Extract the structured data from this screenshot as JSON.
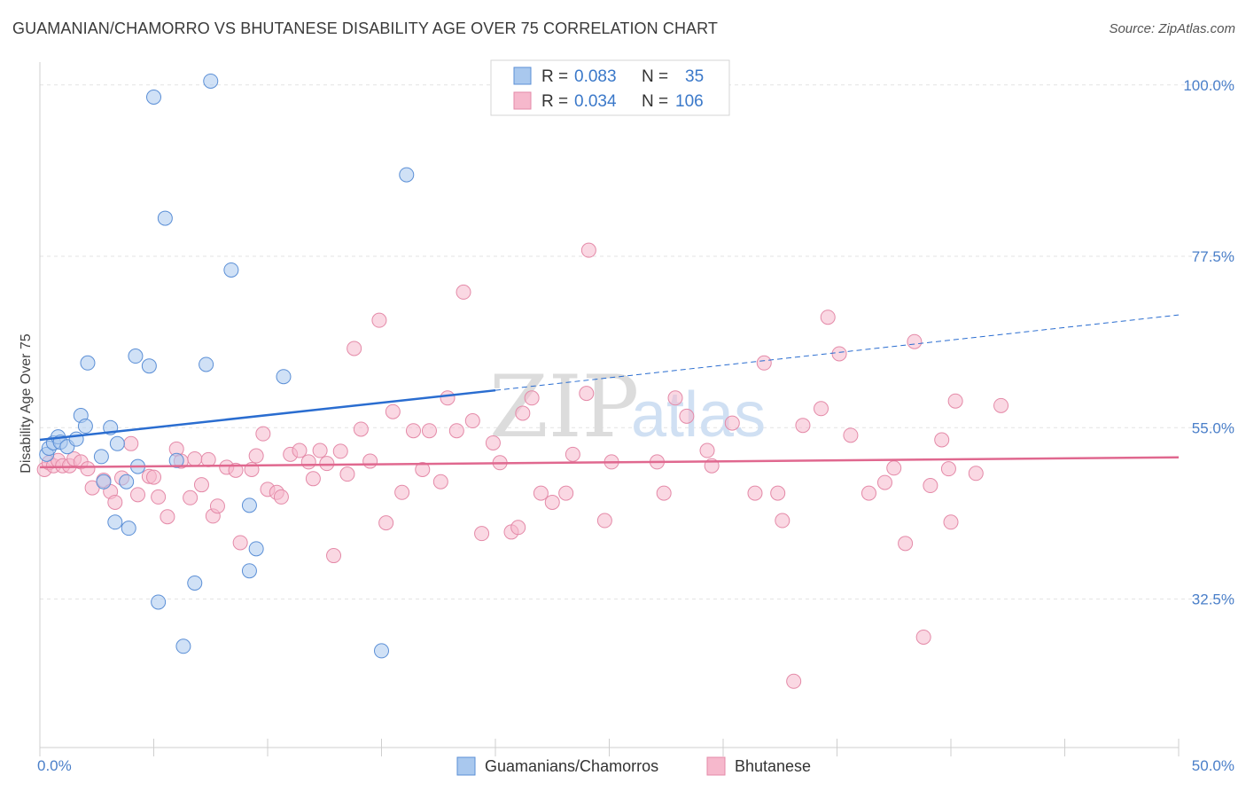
{
  "title": "GUAMANIAN/CHAMORRO VS BHUTANESE DISABILITY AGE OVER 75 CORRELATION CHART",
  "source": "Source: ZipAtlas.com",
  "watermark": {
    "zip": "ZIP",
    "atlas": "atlas"
  },
  "colors": {
    "blue_fill": "#a9c8ee",
    "blue_stroke": "#5b8fd6",
    "blue_line": "#2a6dd0",
    "pink_fill": "#f6b8cc",
    "pink_stroke": "#e48aa8",
    "pink_line": "#e0688f",
    "grid": "#e3e3e3",
    "tick_label": "#4a7fc9"
  },
  "legend": {
    "rows": [
      {
        "r_label": "R =",
        "r_value": "0.083",
        "n_label": "N =",
        "n_value": "35"
      },
      {
        "r_label": "R =",
        "r_value": "0.034",
        "n_label": "N =",
        "n_value": "106"
      }
    ]
  },
  "chart_data": {
    "type": "scatter",
    "title": "GUAMANIAN/CHAMORRO VS BHUTANESE DISABILITY AGE OVER 75 CORRELATION CHART",
    "xlabel": "",
    "ylabel": "Disability Age Over 75",
    "xlim": [
      0,
      50
    ],
    "ylim": [
      13,
      103
    ],
    "x_tick_labels": [
      "0.0%",
      "50.0%"
    ],
    "y_ticks": [
      32.5,
      55.0,
      77.5,
      100.0
    ],
    "y_tick_labels": [
      "32.5%",
      "55.0%",
      "77.5%",
      "100.0%"
    ],
    "grid": "horizontal dashed",
    "legend_position": "top-center",
    "series": [
      {
        "name": "Guamanians/Chamorros",
        "color": "#a9c8ee",
        "trend": {
          "x": [
            0,
            20,
            50
          ],
          "y": [
            53.4,
            59.9,
            69.8
          ],
          "solid_until": 20
        },
        "points": [
          [
            0.3,
            51.5
          ],
          [
            0.4,
            52.3
          ],
          [
            0.6,
            53.0
          ],
          [
            0.8,
            53.8
          ],
          [
            0.9,
            53.1
          ],
          [
            1.2,
            52.5
          ],
          [
            1.6,
            53.5
          ],
          [
            1.8,
            56.6
          ],
          [
            2.0,
            55.2
          ],
          [
            2.1,
            63.5
          ],
          [
            2.7,
            51.2
          ],
          [
            2.8,
            47.9
          ],
          [
            3.1,
            55.0
          ],
          [
            3.3,
            42.6
          ],
          [
            3.4,
            52.9
          ],
          [
            3.8,
            47.9
          ],
          [
            3.9,
            41.8
          ],
          [
            4.2,
            64.4
          ],
          [
            4.3,
            49.9
          ],
          [
            4.8,
            63.1
          ],
          [
            5.0,
            98.4
          ],
          [
            5.2,
            32.1
          ],
          [
            5.5,
            82.5
          ],
          [
            6.0,
            50.7
          ],
          [
            6.3,
            26.3
          ],
          [
            6.8,
            34.6
          ],
          [
            7.3,
            63.3
          ],
          [
            7.5,
            100.5
          ],
          [
            8.4,
            75.7
          ],
          [
            9.2,
            44.8
          ],
          [
            9.2,
            36.2
          ],
          [
            9.5,
            39.1
          ],
          [
            10.7,
            61.7
          ],
          [
            15.0,
            25.7
          ],
          [
            16.1,
            88.2
          ]
        ]
      },
      {
        "name": "Bhutanese",
        "color": "#f6b8cc",
        "trend": {
          "x": [
            0,
            50
          ],
          "y": [
            49.8,
            51.1
          ]
        },
        "points": [
          [
            0.2,
            49.5
          ],
          [
            0.4,
            50.4
          ],
          [
            0.6,
            50.0
          ],
          [
            0.8,
            50.7
          ],
          [
            1.0,
            50.0
          ],
          [
            1.3,
            50.0
          ],
          [
            1.5,
            50.9
          ],
          [
            1.8,
            50.5
          ],
          [
            2.1,
            49.6
          ],
          [
            2.3,
            47.1
          ],
          [
            2.8,
            48.1
          ],
          [
            3.1,
            46.6
          ],
          [
            3.3,
            45.2
          ],
          [
            3.6,
            48.4
          ],
          [
            4.0,
            52.9
          ],
          [
            4.3,
            46.2
          ],
          [
            4.8,
            48.6
          ],
          [
            5.0,
            48.5
          ],
          [
            5.2,
            45.9
          ],
          [
            5.6,
            43.3
          ],
          [
            6.0,
            52.2
          ],
          [
            6.2,
            50.6
          ],
          [
            6.6,
            45.8
          ],
          [
            6.8,
            50.9
          ],
          [
            7.1,
            47.5
          ],
          [
            7.4,
            50.8
          ],
          [
            7.6,
            43.4
          ],
          [
            7.8,
            44.7
          ],
          [
            8.2,
            49.8
          ],
          [
            8.6,
            49.4
          ],
          [
            8.8,
            39.9
          ],
          [
            9.3,
            49.5
          ],
          [
            9.5,
            51.3
          ],
          [
            9.8,
            54.2
          ],
          [
            10.0,
            46.9
          ],
          [
            10.4,
            46.5
          ],
          [
            10.6,
            45.9
          ],
          [
            11.0,
            51.5
          ],
          [
            11.4,
            52.0
          ],
          [
            11.8,
            50.5
          ],
          [
            12.0,
            48.3
          ],
          [
            12.3,
            52.0
          ],
          [
            12.6,
            50.3
          ],
          [
            12.9,
            38.2
          ],
          [
            13.2,
            51.9
          ],
          [
            13.5,
            48.9
          ],
          [
            13.8,
            65.4
          ],
          [
            14.1,
            54.8
          ],
          [
            14.5,
            50.6
          ],
          [
            14.9,
            69.1
          ],
          [
            15.2,
            42.5
          ],
          [
            15.5,
            57.1
          ],
          [
            15.9,
            46.5
          ],
          [
            16.4,
            54.6
          ],
          [
            16.8,
            49.5
          ],
          [
            17.1,
            54.6
          ],
          [
            17.6,
            47.9
          ],
          [
            17.9,
            58.9
          ],
          [
            18.3,
            54.6
          ],
          [
            18.6,
            72.8
          ],
          [
            19.0,
            55.9
          ],
          [
            19.4,
            41.1
          ],
          [
            19.9,
            53.0
          ],
          [
            20.2,
            50.4
          ],
          [
            20.7,
            41.3
          ],
          [
            21.0,
            41.9
          ],
          [
            21.2,
            56.9
          ],
          [
            21.6,
            58.9
          ],
          [
            22.0,
            46.4
          ],
          [
            22.5,
            45.2
          ],
          [
            23.1,
            46.4
          ],
          [
            23.4,
            51.5
          ],
          [
            24.0,
            59.5
          ],
          [
            24.1,
            78.3
          ],
          [
            24.8,
            42.8
          ],
          [
            25.1,
            50.5
          ],
          [
            27.1,
            50.5
          ],
          [
            27.4,
            46.4
          ],
          [
            27.9,
            58.9
          ],
          [
            28.4,
            56.5
          ],
          [
            29.3,
            52.0
          ],
          [
            29.5,
            50.0
          ],
          [
            30.4,
            55.6
          ],
          [
            31.4,
            46.4
          ],
          [
            31.8,
            63.5
          ],
          [
            32.4,
            46.4
          ],
          [
            32.6,
            42.8
          ],
          [
            33.1,
            21.7
          ],
          [
            33.5,
            55.3
          ],
          [
            34.3,
            57.5
          ],
          [
            34.6,
            69.5
          ],
          [
            35.1,
            64.7
          ],
          [
            35.6,
            54.0
          ],
          [
            36.4,
            46.4
          ],
          [
            37.1,
            47.8
          ],
          [
            37.5,
            49.7
          ],
          [
            38.0,
            39.8
          ],
          [
            38.4,
            66.3
          ],
          [
            38.8,
            27.5
          ],
          [
            39.1,
            47.4
          ],
          [
            39.6,
            53.4
          ],
          [
            39.9,
            49.6
          ],
          [
            40.0,
            42.6
          ],
          [
            40.2,
            58.5
          ],
          [
            41.1,
            49.0
          ],
          [
            42.2,
            57.9
          ]
        ]
      }
    ]
  },
  "axis": {
    "x_left_label": "0.0%",
    "x_right_label": "50.0%",
    "y_label": "Disability Age Over 75",
    "y_tick_labels": [
      "32.5%",
      "55.0%",
      "77.5%",
      "100.0%"
    ]
  },
  "bottom_legend": [
    {
      "label": "Guamanians/Chamorros",
      "color": "#a9c8ee"
    },
    {
      "label": "Bhutanese",
      "color": "#f6b8cc"
    }
  ]
}
